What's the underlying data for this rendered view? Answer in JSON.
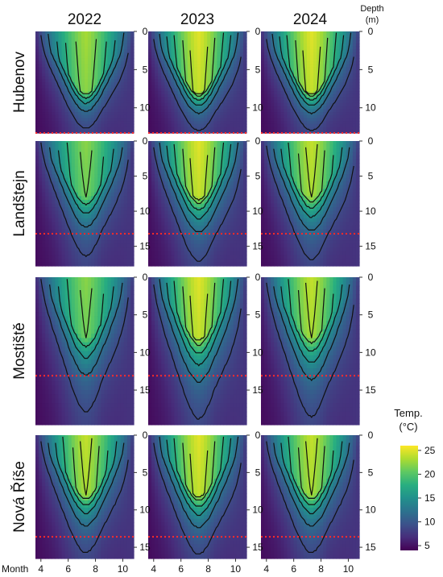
{
  "chart_data": {
    "type": "heatmap",
    "columns": [
      "2022",
      "2023",
      "2024"
    ],
    "rows": [
      "Hubenov",
      "Landštejn",
      "Mostiště",
      "Nová Říše"
    ],
    "x_axis_label": "Month",
    "x_ticks": [
      4,
      6,
      8,
      10
    ],
    "xlim": [
      3.6,
      10.8
    ],
    "y_axis_label_line1": "Depth",
    "y_axis_label_line2": "(m)",
    "depth_ticks": [
      [
        0,
        5,
        10
      ],
      [
        0,
        5,
        10,
        15
      ],
      [
        0,
        5,
        10,
        15
      ],
      [
        0,
        5,
        10,
        15
      ]
    ],
    "depth_max": [
      13.3,
      17.8,
      19.6,
      16.5
    ],
    "threshold_depth": [
      13.3,
      13.2,
      13.1,
      13.6
    ],
    "surface_max_temp": [
      [
        23,
        25,
        25
      ],
      [
        22,
        25,
        24
      ],
      [
        22,
        25,
        24
      ],
      [
        24,
        25,
        24
      ]
    ],
    "legend": {
      "title_line1": "Temp.",
      "title_line2": "(°C)",
      "ticks": [
        25,
        20,
        15,
        10,
        5
      ],
      "range": [
        4,
        26
      ],
      "colors": [
        "#440154",
        "#472d7b",
        "#3b528b",
        "#2c728e",
        "#21918c",
        "#28ae80",
        "#5ec962",
        "#addc30",
        "#fde725"
      ]
    }
  }
}
